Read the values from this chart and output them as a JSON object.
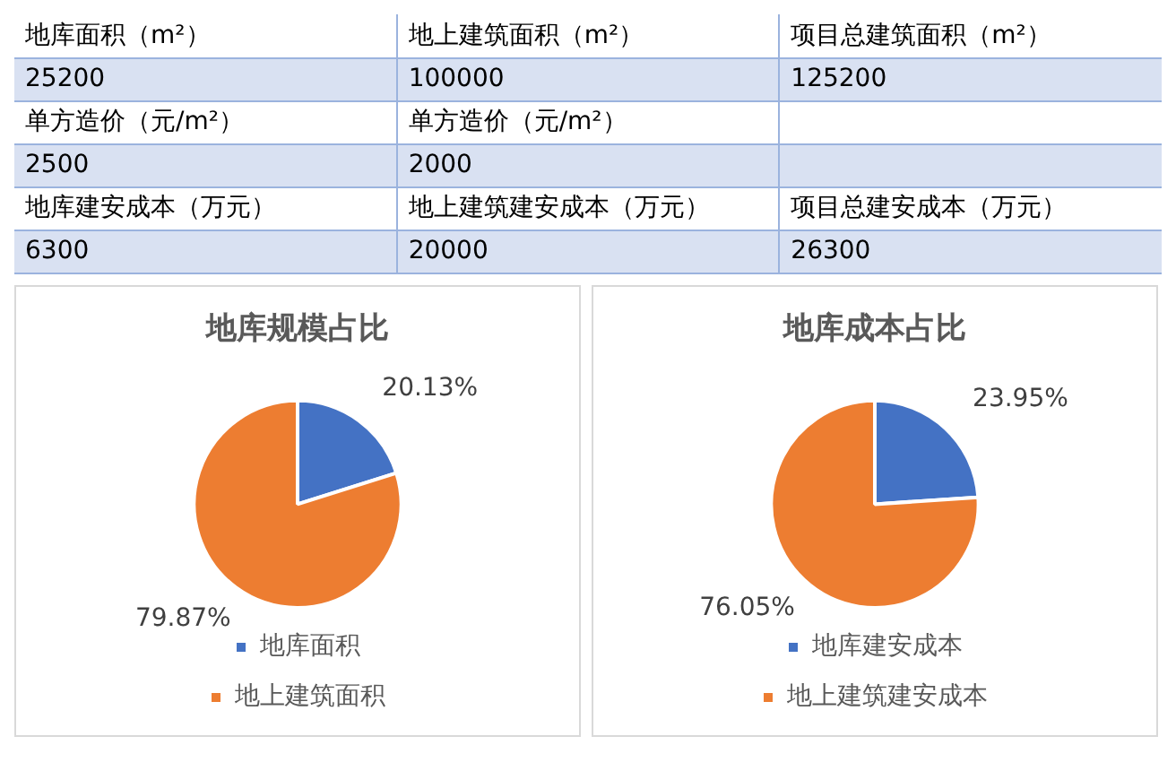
{
  "chart_data": [
    {
      "type": "other",
      "cell_labels": [
        [
          "地库面积（m²）",
          "地上建筑面积（m²）",
          "项目总建筑面积（m²）"
        ],
        [
          "25200",
          "100000",
          "125200"
        ],
        [
          "单方造价（元/m²）",
          "单方造价（元/m²）",
          null
        ],
        [
          "2500",
          "2000",
          null
        ],
        [
          "地库建安成本（万元）",
          "地上建筑建安成本（万元）",
          "项目总建安成本（万元）"
        ],
        [
          "6300",
          "20000",
          "26300"
        ]
      ]
    },
    {
      "type": "pie",
      "title": "地库规模占比",
      "categories": [
        "地库面积",
        "地上建筑面积"
      ],
      "values": [
        20.13,
        79.87
      ],
      "colors": [
        "#4472c4",
        "#ed7d31"
      ],
      "value_labels": [
        "20.13%",
        "79.87%"
      ],
      "legend": "bottom"
    },
    {
      "type": "pie",
      "title": "地库成本占比",
      "categories": [
        "地库建安成本",
        "地上建筑建安成本"
      ],
      "values": [
        23.95,
        76.05
      ],
      "colors": [
        "#4472c4",
        "#ed7d31"
      ],
      "value_labels": [
        "23.95%",
        "76.05%"
      ],
      "legend": "bottom"
    }
  ]
}
